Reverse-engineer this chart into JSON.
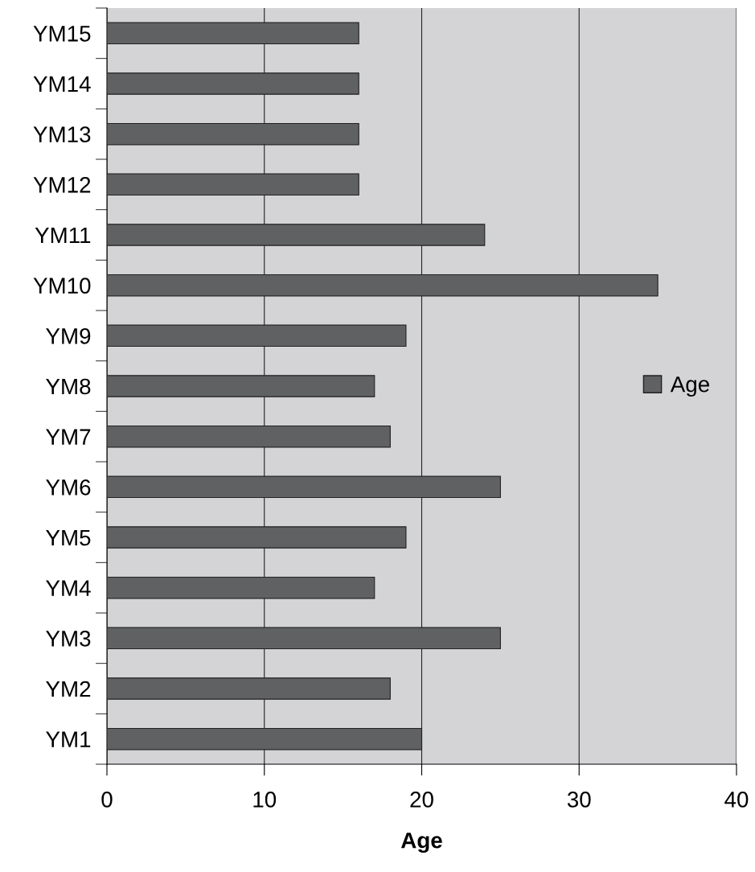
{
  "chart_data": {
    "type": "bar",
    "orientation": "horizontal",
    "xlabel": "Age",
    "categories": [
      "YM15",
      "YM14",
      "YM13",
      "YM12",
      "YM11",
      "YM10",
      "YM9",
      "YM8",
      "YM7",
      "YM6",
      "YM5",
      "YM4",
      "YM3",
      "YM2",
      "YM1"
    ],
    "series": [
      {
        "name": "Age",
        "color": "#606163",
        "values": [
          16,
          16,
          16,
          16,
          24,
          35,
          19,
          17,
          18,
          25,
          19,
          17,
          25,
          18,
          20
        ]
      }
    ],
    "xlim": [
      0,
      40
    ],
    "xticks": [
      0,
      10,
      20,
      30,
      40
    ],
    "grid": "x",
    "legend": "right"
  }
}
